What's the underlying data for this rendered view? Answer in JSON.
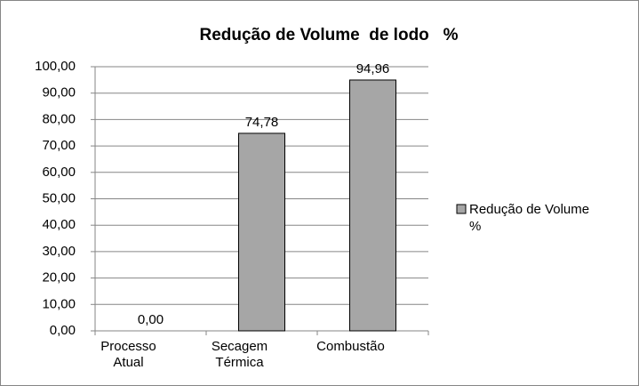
{
  "chart_data": {
    "type": "bar",
    "title": "Redução de Volume  de lodo   %",
    "categories": [
      "Processo Atual",
      "Secagem Térmica",
      "Combustão"
    ],
    "series": [
      {
        "name": "Redução de Volume %",
        "color": "#a6a6a6",
        "values": [
          0,
          74.78,
          94.96
        ],
        "value_labels": [
          "0,00",
          "74,78",
          "94,96"
        ]
      }
    ],
    "ylim": [
      0,
      100
    ],
    "yticks": [
      {
        "value": 0,
        "label": "0,00"
      },
      {
        "value": 10,
        "label": "10,00"
      },
      {
        "value": 20,
        "label": "20,00"
      },
      {
        "value": 30,
        "label": "30,00"
      },
      {
        "value": 40,
        "label": "40,00"
      },
      {
        "value": 50,
        "label": "50,00"
      },
      {
        "value": 60,
        "label": "60,00"
      },
      {
        "value": 70,
        "label": "70,00"
      },
      {
        "value": 80,
        "label": "80,00"
      },
      {
        "value": 90,
        "label": "90,00"
      },
      {
        "value": 100,
        "label": "100,00"
      }
    ],
    "grid": true,
    "legend": "right"
  }
}
